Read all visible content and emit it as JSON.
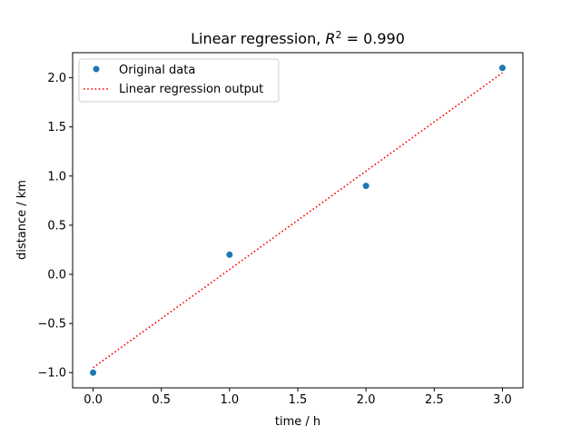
{
  "chart_data": {
    "type": "scatter",
    "title_main": "Linear regression, ",
    "title_r2_symbol": "R",
    "title_r2_exp": "2",
    "title_r2_value": " = 0.990",
    "xlabel": "time / h",
    "ylabel": "distance / km",
    "xlim": [
      -0.15,
      3.15
    ],
    "ylim": [
      -1.155,
      2.255
    ],
    "xticks": [
      0.0,
      0.5,
      1.0,
      1.5,
      2.0,
      2.5,
      3.0
    ],
    "xtick_labels": [
      "0.0",
      "0.5",
      "1.0",
      "1.5",
      "2.0",
      "2.5",
      "3.0"
    ],
    "yticks": [
      -1.0,
      -0.5,
      0.0,
      0.5,
      1.0,
      1.5,
      2.0
    ],
    "ytick_labels": [
      "−1.0",
      "−0.5",
      "0.0",
      "0.5",
      "1.0",
      "1.5",
      "2.0"
    ],
    "grid": false,
    "legend_position": "upper-left",
    "series": [
      {
        "name": "Original data",
        "kind": "scatter",
        "color": "#1f77b4",
        "x": [
          0,
          1,
          2,
          3
        ],
        "y": [
          -1.0,
          0.2,
          0.9,
          2.1
        ]
      },
      {
        "name": "Linear regression output",
        "kind": "line",
        "style": "dotted",
        "color": "#ff0000",
        "x": [
          0,
          3
        ],
        "y": [
          -0.95,
          2.05
        ]
      }
    ]
  }
}
